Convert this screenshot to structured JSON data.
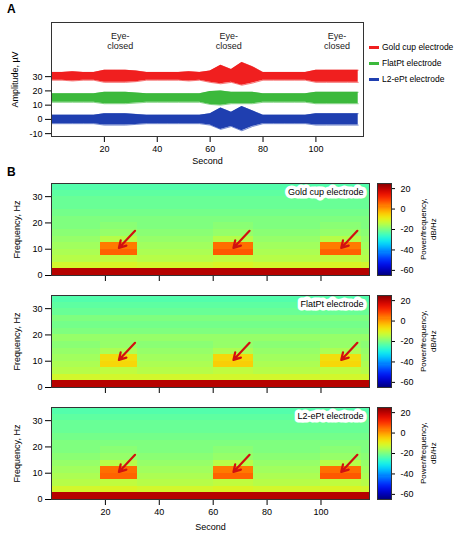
{
  "chart_data": [
    {
      "type": "area",
      "panel": "A",
      "xlabel": "Second",
      "ylabel": "Amplitude, µV",
      "xlim": [
        0,
        118
      ],
      "xticks": [
        20,
        40,
        60,
        80,
        100
      ],
      "ylim": [
        -12,
        68
      ],
      "yticks": [
        -10,
        0,
        10,
        20,
        30
      ],
      "legend": "right",
      "x": [
        0,
        4,
        8,
        12,
        16,
        20,
        24,
        28,
        32,
        36,
        40,
        44,
        48,
        52,
        56,
        60,
        64,
        68,
        72,
        76,
        80,
        84,
        88,
        92,
        96,
        100,
        104,
        108,
        112,
        116
      ],
      "series": [
        {
          "name": "Gold cup electrode",
          "color": "#f01f1f",
          "upper": [
            33,
            33,
            33.5,
            33,
            33,
            34.5,
            34.5,
            34.5,
            34,
            33,
            33,
            33,
            33,
            33.5,
            33,
            34,
            38,
            35,
            40,
            37,
            33,
            33,
            33,
            33,
            33,
            34.5,
            34.5,
            34.5,
            34.5,
            34.5
          ],
          "lower": [
            27.5,
            27.5,
            27,
            27.5,
            27.5,
            26,
            26,
            26,
            26.5,
            27.5,
            27.5,
            27.5,
            27.5,
            27,
            27.5,
            26,
            25,
            26,
            24,
            25.5,
            27.5,
            27.5,
            27.5,
            27.5,
            27.5,
            26,
            26,
            26,
            26,
            26
          ]
        },
        {
          "name": "FlatPt electrode",
          "color": "#3cb93c",
          "upper": [
            18,
            18,
            18,
            18,
            18,
            19,
            19,
            19,
            18.5,
            18,
            18,
            18,
            18,
            18,
            18,
            19.5,
            20,
            19,
            19,
            19,
            18,
            18,
            18,
            18,
            18,
            19,
            19,
            19,
            19,
            19
          ],
          "lower": [
            12,
            12,
            12,
            12,
            12,
            11,
            11,
            11,
            11.5,
            12,
            12,
            12,
            12,
            12,
            12,
            10.5,
            10,
            11,
            11,
            11,
            12,
            12,
            12,
            12,
            12,
            11,
            11,
            11,
            11,
            11
          ]
        },
        {
          "name": "L2-ePt electrode",
          "color": "#1f3fb0",
          "upper": [
            3,
            3,
            3,
            3,
            3,
            4,
            4,
            4,
            3.5,
            3,
            3,
            3,
            3,
            3,
            3,
            4,
            8,
            5,
            9,
            6,
            3,
            3,
            3,
            3,
            3,
            4,
            4,
            4,
            4,
            4
          ],
          "lower": [
            -3,
            -3,
            -3,
            -3,
            -3,
            -4,
            -4,
            -4,
            -3.5,
            -3,
            -3,
            -3,
            -3,
            -3,
            -3,
            -4,
            -7,
            -5,
            -8,
            -5,
            -3,
            -3,
            -3,
            -3,
            -3,
            -4,
            -4,
            -4,
            -4,
            -4
          ]
        }
      ],
      "annotations": [
        {
          "text": "Eye-\nclosed",
          "x": 26,
          "y": 55
        },
        {
          "text": "Eye-\nclosed",
          "x": 67,
          "y": 55
        },
        {
          "text": "Eye-\nclosed",
          "x": 108,
          "y": 55
        }
      ]
    },
    {
      "type": "heatmap",
      "panel": "B",
      "title": "Gold cup electrode",
      "ylabel": "Frequency, Hz",
      "tick_labels": "y",
      "xlim": [
        0,
        118
      ],
      "xticks": [
        20,
        40,
        60,
        80,
        100
      ],
      "ylim": [
        0,
        35
      ],
      "yticks": [
        0,
        10,
        20,
        30
      ],
      "x_bins": [
        0,
        18,
        32,
        60,
        75,
        100,
        115,
        118
      ],
      "y_bins": [
        0,
        2.5,
        5,
        7.5,
        10,
        12.5,
        15,
        17.5,
        20,
        22.5,
        25,
        27.5,
        30,
        32.5,
        35
      ],
      "power": [
        [
          20,
          20,
          20,
          20,
          20,
          20,
          20
        ],
        [
          -12,
          -11,
          -12,
          -11,
          -12,
          -11,
          -12
        ],
        [
          -15,
          -14,
          -15,
          -14,
          -15,
          -14,
          -15
        ],
        [
          -16,
          5,
          -16,
          6,
          -16,
          5,
          -16
        ],
        [
          -17,
          3,
          -17,
          4,
          -17,
          3,
          -17
        ],
        [
          -18,
          -15,
          -18,
          -15,
          -18,
          -15,
          -18
        ],
        [
          -19,
          -18,
          -19,
          -18,
          -19,
          -18,
          -19
        ],
        [
          -20,
          -19,
          -20,
          -19,
          -20,
          -19,
          -20
        ],
        [
          -20,
          -20,
          -20,
          -20,
          -20,
          -20,
          -20
        ],
        [
          -21,
          -21,
          -21,
          -21,
          -21,
          -21,
          -21
        ],
        [
          -22,
          -22,
          -22,
          -22,
          -22,
          -22,
          -22
        ],
        [
          -22,
          -22,
          -22,
          -22,
          -22,
          -22,
          -22
        ],
        [
          -23,
          -23,
          -23,
          -23,
          -23,
          -23,
          -23
        ],
        [
          -24,
          -24,
          -24,
          -24,
          -24,
          -24,
          -24
        ]
      ],
      "colorbar": {
        "range": [
          -65,
          25
        ],
        "ticks": [
          -60,
          -40,
          -20,
          0,
          20
        ],
        "label": "Power/frequency, dB/Hz"
      }
    },
    {
      "type": "heatmap",
      "title": "FlatPt electrode",
      "ylabel": "Frequency, Hz",
      "tick_labels": "y",
      "xlim": [
        0,
        118
      ],
      "xticks": [
        20,
        40,
        60,
        80,
        100
      ],
      "ylim": [
        0,
        35
      ],
      "yticks": [
        0,
        10,
        20,
        30
      ],
      "x_bins": [
        0,
        18,
        32,
        60,
        75,
        100,
        115,
        118
      ],
      "y_bins": [
        0,
        2.5,
        5,
        7.5,
        10,
        12.5,
        15,
        17.5,
        20,
        22.5,
        25,
        27.5,
        30,
        32.5,
        35
      ],
      "power": [
        [
          20,
          20,
          20,
          20,
          20,
          20,
          20
        ],
        [
          -12,
          -12,
          -12,
          -12,
          -12,
          -12,
          -12
        ],
        [
          -15,
          -14,
          -15,
          -14,
          -15,
          -14,
          -15
        ],
        [
          -16,
          -6,
          -16,
          -5,
          -16,
          -6,
          -16
        ],
        [
          -17,
          -7,
          -17,
          -6,
          -17,
          -7,
          -17
        ],
        [
          -18,
          -16,
          -18,
          -16,
          -18,
          -16,
          -18
        ],
        [
          -19,
          -18,
          -19,
          -18,
          -19,
          -18,
          -19
        ],
        [
          -18,
          -18,
          -18,
          -18,
          -18,
          -18,
          -18
        ],
        [
          -20,
          -20,
          -20,
          -20,
          -20,
          -20,
          -20
        ],
        [
          -21,
          -21,
          -21,
          -21,
          -21,
          -21,
          -21
        ],
        [
          -20,
          -20,
          -20,
          -20,
          -20,
          -20,
          -20
        ],
        [
          -22,
          -22,
          -22,
          -22,
          -22,
          -22,
          -22
        ],
        [
          -23,
          -23,
          -23,
          -23,
          -23,
          -23,
          -23
        ],
        [
          -24,
          -24,
          -24,
          -24,
          -24,
          -24,
          -24
        ]
      ],
      "colorbar": {
        "range": [
          -65,
          25
        ],
        "ticks": [
          -60,
          -40,
          -20,
          0,
          20
        ],
        "label": "Power/frequency, dB/Hz"
      }
    },
    {
      "type": "heatmap",
      "title": "L2-ePt electrode",
      "ylabel": "Frequency, Hz",
      "xlabel": "Second",
      "xlim": [
        0,
        118
      ],
      "xticks": [
        20,
        40,
        60,
        80,
        100
      ],
      "ylim": [
        0,
        35
      ],
      "yticks": [
        0,
        10,
        20,
        30
      ],
      "x_bins": [
        0,
        18,
        32,
        60,
        75,
        100,
        115,
        118
      ],
      "y_bins": [
        0,
        2.5,
        5,
        7.5,
        10,
        12.5,
        15,
        17.5,
        20,
        22.5,
        25,
        27.5,
        30,
        32.5,
        35
      ],
      "power": [
        [
          20,
          20,
          20,
          20,
          20,
          20,
          20
        ],
        [
          -12,
          -11,
          -12,
          -11,
          -12,
          -11,
          -12
        ],
        [
          -15,
          -14,
          -15,
          -14,
          -15,
          -14,
          -15
        ],
        [
          -16,
          5,
          -16,
          5,
          -16,
          6,
          -16
        ],
        [
          -17,
          4,
          -17,
          3,
          -17,
          4,
          -17
        ],
        [
          -18,
          -15,
          -18,
          -15,
          -18,
          -15,
          -18
        ],
        [
          -19,
          -18,
          -19,
          -18,
          -19,
          -18,
          -19
        ],
        [
          -20,
          -19,
          -20,
          -19,
          -20,
          -19,
          -20
        ],
        [
          -20,
          -20,
          -20,
          -20,
          -20,
          -20,
          -20
        ],
        [
          -21,
          -21,
          -21,
          -21,
          -21,
          -21,
          -21
        ],
        [
          -22,
          -22,
          -22,
          -22,
          -22,
          -22,
          -22
        ],
        [
          -22,
          -22,
          -22,
          -22,
          -22,
          -22,
          -22
        ],
        [
          -23,
          -23,
          -23,
          -23,
          -23,
          -23,
          -23
        ],
        [
          -24,
          -24,
          -24,
          -24,
          -24,
          -24,
          -24
        ]
      ],
      "colorbar": {
        "range": [
          -65,
          25
        ],
        "ticks": [
          -60,
          -40,
          -20,
          0,
          20
        ],
        "label": "Power/frequency, dB/Hz"
      }
    }
  ]
}
